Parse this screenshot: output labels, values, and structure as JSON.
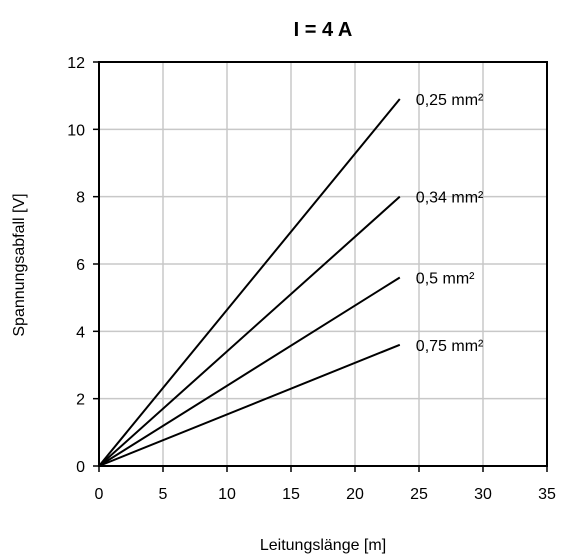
{
  "chart_data": {
    "type": "line",
    "title": "I = 4 A",
    "xlabel": "Leitungslänge [m]",
    "ylabel": "Spannungsabfall [V]",
    "xlim": [
      0,
      35
    ],
    "ylim": [
      0,
      12
    ],
    "xticks": [
      "0",
      "5",
      "10",
      "15",
      "20",
      "25",
      "30",
      "35"
    ],
    "yticks": [
      "0",
      "2",
      "4",
      "6",
      "8",
      "10",
      "12"
    ],
    "grid": true,
    "series": [
      {
        "name": "0,25 mm²",
        "x": [
          0,
          23.5
        ],
        "y": [
          0,
          10.9
        ]
      },
      {
        "name": "0,34 mm²",
        "x": [
          0,
          23.5
        ],
        "y": [
          0,
          8.0
        ]
      },
      {
        "name": "0,5 mm²",
        "x": [
          0,
          23.5
        ],
        "y": [
          0,
          5.6
        ]
      },
      {
        "name": "0,75 mm²",
        "x": [
          0,
          23.5
        ],
        "y": [
          0,
          3.6
        ]
      }
    ]
  }
}
